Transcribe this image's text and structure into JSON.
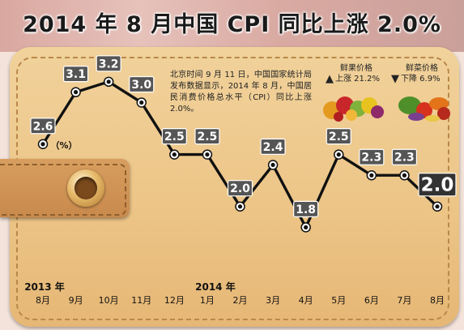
{
  "header": {
    "title": "2014 年 8 月中国 CPI 同比上涨 2.0%"
  },
  "note": {
    "text": "北京时间 9 月 11 日，中国国家统计局发布数据显示，2014 年 8 月，中国居民消费价格总水平（CPI）同比上涨 2.0%。"
  },
  "legend": {
    "fruit_name": "鲜果价格",
    "fruit_change": "上涨 21.2%",
    "fruit_direction": "up",
    "veg_name": "鲜菜价格",
    "veg_change": "下降 6.9%",
    "veg_direction": "down"
  },
  "colors": {
    "line": "#111111",
    "label_box": "#555555",
    "last_label_box": "#333333",
    "wallet": "#ecc486"
  },
  "chart_data": {
    "type": "line",
    "unit": "（%）",
    "categories": [
      "8月",
      "9月",
      "10月",
      "11月",
      "12月",
      "1月",
      "2月",
      "3月",
      "4月",
      "5月",
      "6月",
      "7月",
      "8月"
    ],
    "year_labels": [
      "2013 年",
      "2014 年"
    ],
    "year_label_positions": [
      0,
      5
    ],
    "values": [
      2.6,
      3.1,
      3.2,
      3.0,
      2.5,
      2.5,
      2.0,
      2.4,
      1.8,
      2.5,
      2.3,
      2.3,
      2.0
    ],
    "value_labels": [
      "2.6",
      "3.1",
      "3.2",
      "3.0",
      "2.5",
      "2.5",
      "2.0",
      "2.4",
      "1.8",
      "2.5",
      "2.3",
      "2.3",
      "2.0"
    ],
    "highlight_last": true,
    "ylim": [
      1.6,
      3.3
    ],
    "grid": false
  }
}
